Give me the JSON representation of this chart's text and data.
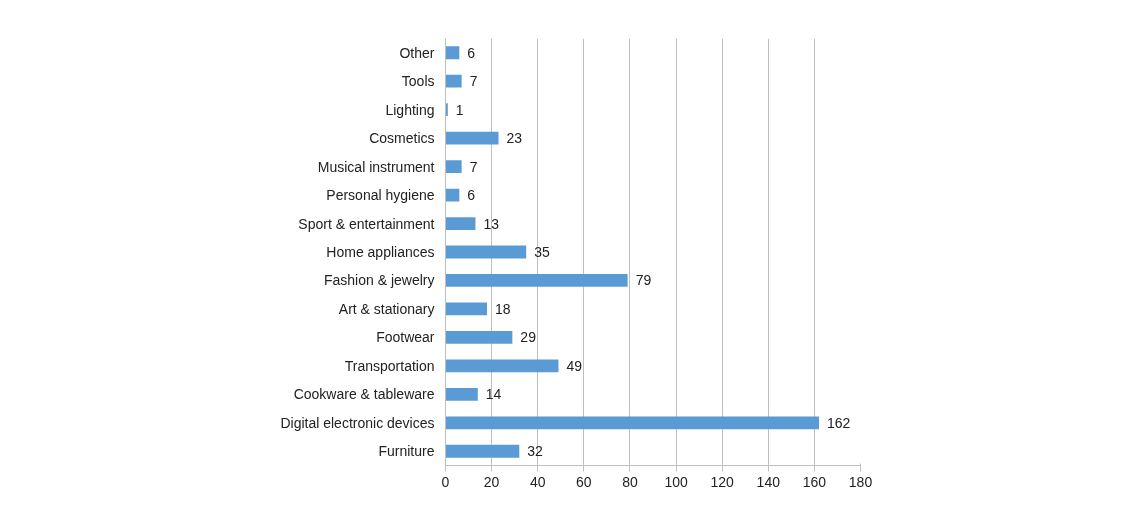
{
  "chart_data": {
    "type": "bar",
    "orientation": "horizontal",
    "categories": [
      "Other",
      "Tools",
      "Lighting",
      "Cosmetics",
      "Musical instrument",
      "Personal hygiene",
      "Sport & entertainment",
      "Home appliances",
      "Fashion & jewelry",
      "Art & stationary",
      "Footwear",
      "Transportation",
      "Cookware & tableware",
      "Digital electronic devices",
      "Furniture"
    ],
    "values": [
      6,
      7,
      1,
      23,
      7,
      6,
      13,
      35,
      79,
      18,
      29,
      49,
      14,
      162,
      32
    ],
    "color": "#5b9bd5",
    "xlim": [
      0,
      180
    ],
    "xticks": [
      0,
      20,
      40,
      60,
      80,
      100,
      120,
      140,
      160,
      180
    ],
    "grid": "x",
    "data_labels": true
  }
}
